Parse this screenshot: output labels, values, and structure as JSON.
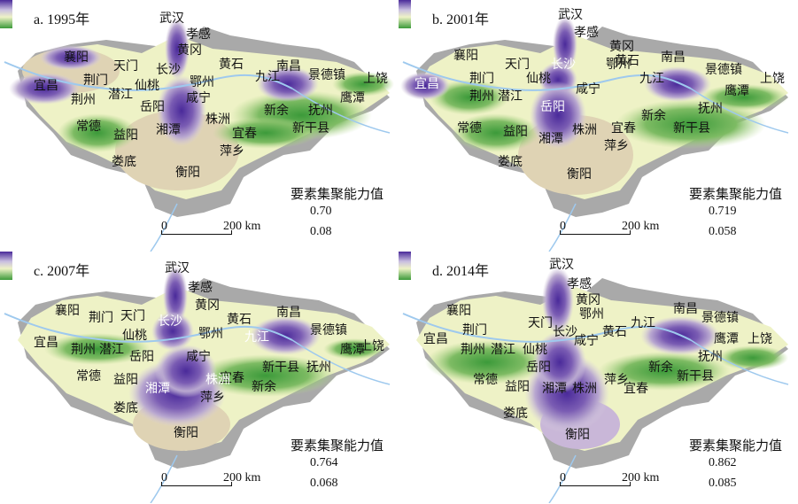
{
  "legend_title": "要素集聚能力值",
  "scale_zero": "0",
  "scale_label": "200 km",
  "colors": {
    "water": "#9ec9ee",
    "gray_base": "#a9a9a9",
    "low_green": "#3c9a3a",
    "mid_yellow": "#eef2c6",
    "mid_beige": "#dfd3b4",
    "high_purple": "#4a2a9a"
  },
  "panels": [
    {
      "title": "a. 1995年",
      "legend_max": "0.70",
      "legend_min": "0.08",
      "cities": {
        "wuhan": "武汉",
        "xiaogan": "孝感",
        "huanggang": "黄冈",
        "xiangyang": "襄阳",
        "tianmen": "天门",
        "changsha": "长沙",
        "huangshi": "黄石",
        "nanchang": "南昌",
        "yichang": "宜昌",
        "jingmen": "荆门",
        "xiantao": "仙桃",
        "ezhou": "鄂州",
        "jiujiang": "九江",
        "jingdezhen": "景德镇",
        "shangrao": "上饶",
        "jingzhou": "荆州",
        "qianjiang": "潜江",
        "yueyang": "岳阳",
        "xianning": "咸宁",
        "yingtan": "鹰潭",
        "xinyu": "新余",
        "fuzhou": "抚州",
        "changde": "常德",
        "yiyang": "益阳",
        "xiangtan": "湘潭",
        "zhuzhou": "株洲",
        "yichun": "宜春",
        "xinganxian": "新干县",
        "pingxiang": "萍乡",
        "loudi": "娄底",
        "hengyang": "衡阳"
      }
    },
    {
      "title": "b. 2001年",
      "legend_max": "0.719",
      "legend_min": "0.058",
      "cities": {
        "wuhan": "武汉",
        "xiaogan": "孝感",
        "huanggang": "黄冈",
        "xiangyang": "襄阳",
        "tianmen": "天门",
        "changsha": "长沙",
        "ezhou": "鄂州",
        "huangshi": "黄石",
        "nanchang": "南昌",
        "jingdezhen": "景德镇",
        "shangrao": "上饶",
        "yichang": "宜昌",
        "jingzhou": "荆州",
        "qianjiang": "潜江",
        "xiantao": "仙桃",
        "xianning": "咸宁",
        "jiujiang": "九江",
        "yingtan": "鹰潭",
        "yueyang": "岳阳",
        "xinyu": "新余",
        "fuzhou": "抚州",
        "changde": "常德",
        "yiyang": "益阳",
        "xiangtan": "湘潭",
        "zhuzhou": "株洲",
        "yichun": "宜春",
        "xinganxian": "新干县",
        "pingxiang": "萍乡",
        "loudi": "娄底",
        "hengyang": "衡阳",
        "jingmen": "荆门"
      }
    },
    {
      "title": "c. 2007年",
      "legend_max": "0.764",
      "legend_min": "0.068",
      "cities": {
        "wuhan": "武汉",
        "xiaogan": "孝感",
        "huanggang": "黄冈",
        "xiangyang": "襄阳",
        "jingmen": "荆门",
        "tianmen": "天门",
        "changsha": "长沙",
        "huangshi": "黄石",
        "nanchang": "南昌",
        "xiantao": "仙桃",
        "ezhou": "鄂州",
        "jiujiang": "九江",
        "jingdezhen": "景德镇",
        "yichang": "宜昌",
        "shangrao": "上饶",
        "jingzhou": "荆州",
        "qianjiang": "潜江",
        "yueyang": "岳阳",
        "xianning": "咸宁",
        "yingtan": "鹰潭",
        "xinganxian": "新干县",
        "fuzhou": "抚州",
        "changde": "常德",
        "yiyang": "益阳",
        "yichun": "宜春",
        "xiangtan": "湘潭",
        "zhuzhou": "株洲",
        "xinyu": "新余",
        "pingxiang": "萍乡",
        "loudi": "娄底",
        "hengyang": "衡阳"
      }
    },
    {
      "title": "d. 2014年",
      "legend_max": "0.862",
      "legend_min": "0.085",
      "cities": {
        "wuhan": "武汉",
        "xiaogan": "孝感",
        "huanggang": "黄冈",
        "xiangyang": "襄阳",
        "ezhou": "鄂州",
        "nanchang": "南昌",
        "tianmen": "天门",
        "jiujiang": "九江",
        "jingdezhen": "景德镇",
        "yichang": "宜昌",
        "changsha": "长沙",
        "huangshi": "黄石",
        "jingmen": "荆门",
        "xianning": "咸宁",
        "yingtan": "鹰潭",
        "shangrao": "上饶",
        "jingzhou": "荆州",
        "qianjiang": "潜江",
        "xiantao": "仙桃",
        "fuzhou": "抚州",
        "yueyang": "岳阳",
        "xinyu": "新余",
        "changde": "常德",
        "pingxiang": "萍乡",
        "xinganxian": "新干县",
        "yiyang": "益阳",
        "xiangtan": "湘潭",
        "zhuzhou": "株洲",
        "yichun": "宜春",
        "loudi": "娄底",
        "hengyang": "衡阳"
      }
    }
  ]
}
